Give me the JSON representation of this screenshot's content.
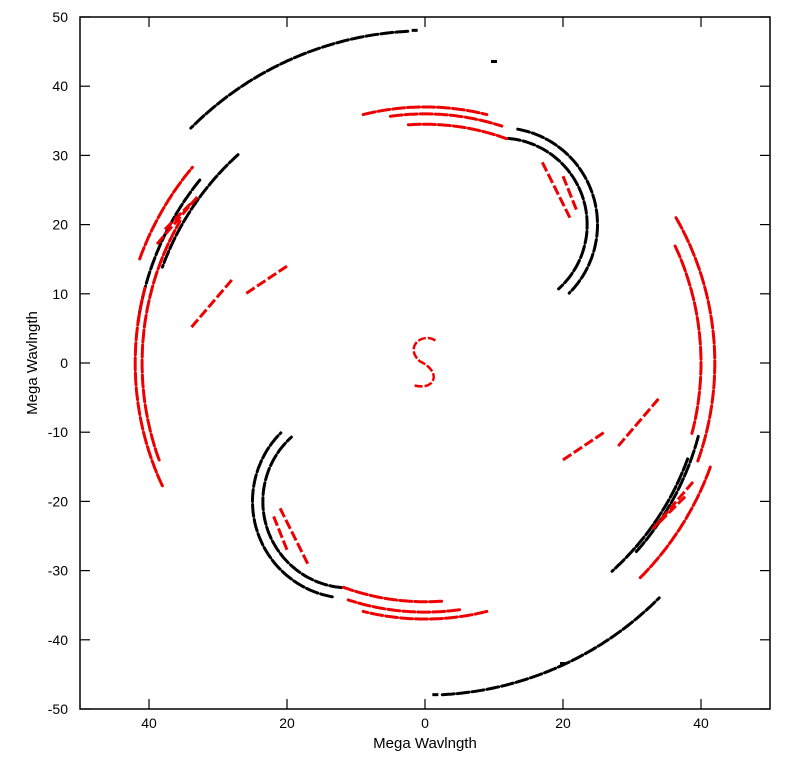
{
  "chart_data": {
    "type": "scatter",
    "title": "",
    "xlabel": "Mega Wavlngth",
    "ylabel": "Mega Wavlngth",
    "xlim": [
      50,
      -50
    ],
    "ylim": [
      -50,
      50
    ],
    "x_ticks": [
      40,
      20,
      0,
      -20,
      -40
    ],
    "x_tick_labels": [
      "40",
      "20",
      "0",
      "20",
      "40"
    ],
    "y_ticks": [
      50,
      40,
      30,
      20,
      10,
      0,
      -10,
      -20,
      -30,
      -40,
      -50
    ],
    "y_tick_labels": [
      "50",
      "40",
      "30",
      "20",
      "10",
      "0",
      "-10",
      "-20",
      "-30",
      "-40",
      "-50"
    ],
    "grid": false,
    "legend": "none",
    "colors": {
      "black_series": "#000000",
      "red_series": "#ee0000",
      "frame": "#000000"
    },
    "series": [
      {
        "color": "#000000",
        "arcs": [
          {
            "center": [
              0,
              0
            ],
            "r": 48,
            "theta_deg": [
              87,
              45
            ],
            "rx_offset": 0
          },
          {
            "center": [
              0,
              0
            ],
            "r": 48,
            "theta_deg": [
              267,
              225
            ]
          },
          {
            "center": [
              0,
              0
            ],
            "r": 42,
            "theta_deg": [
              39,
              8
            ]
          },
          {
            "center": [
              0,
              0
            ],
            "r": 41,
            "theta_deg": [
              195,
              222
            ]
          },
          {
            "center": [
              0,
              0
            ],
            "r": 40.5,
            "theta_deg": [
              48,
              20
            ]
          },
          {
            "center": [
              0,
              0
            ],
            "r": 40.5,
            "theta_deg": [
              200,
              228
            ]
          },
          {
            "center": [
              -11,
              20
            ],
            "r": 14,
            "theta_deg": [
              100,
              225
            ]
          },
          {
            "center": [
              -11,
              20
            ],
            "r": 12.5,
            "theta_deg": [
              95,
              228
            ]
          },
          {
            "center": [
              11,
              -20
            ],
            "r": 14,
            "theta_deg": [
              280,
              405
            ]
          },
          {
            "center": [
              11,
              -20
            ],
            "r": 12.5,
            "theta_deg": [
              275,
              408
            ]
          }
        ],
        "points": [
          [
            -10,
            43.5
          ],
          [
            -20,
            -43.5
          ],
          [
            1.5,
            48
          ],
          [
            -1.5,
            -48
          ]
        ]
      },
      {
        "color": "#ee0000",
        "arcs": [
          {
            "center": [
              0,
              0
            ],
            "r": 42,
            "theta_deg": [
              150,
              200
            ]
          },
          {
            "center": [
              0,
              0
            ],
            "r": 41,
            "theta_deg": [
              -20,
              30
            ]
          },
          {
            "center": [
              0,
              0
            ],
            "r": 40,
            "theta_deg": [
              155,
              195
            ]
          },
          {
            "center": [
              0,
              0
            ],
            "r": 42,
            "theta_deg": [
              -25,
              15
            ]
          },
          {
            "center": [
              0,
              0
            ],
            "r": 44,
            "theta_deg": [
              20,
              40
            ]
          },
          {
            "center": [
              0,
              0
            ],
            "r": 44,
            "theta_deg": [
              200,
              225
            ]
          },
          {
            "center": [
              0,
              0
            ],
            "r": 37,
            "theta_deg": [
              76,
              104
            ]
          },
          {
            "center": [
              0,
              0
            ],
            "r": 36,
            "theta_deg": [
              82,
              108
            ]
          },
          {
            "center": [
              0,
              0
            ],
            "r": 34.5,
            "theta_deg": [
              86,
              110
            ]
          },
          {
            "center": [
              0,
              0
            ],
            "r": 37,
            "theta_deg": [
              256,
              284
            ]
          },
          {
            "center": [
              0,
              0
            ],
            "r": 36,
            "theta_deg": [
              262,
              288
            ]
          },
          {
            "center": [
              0,
              0
            ],
            "r": 34.5,
            "theta_deg": [
              266,
              290
            ]
          }
        ],
        "segments": [
          [
            [
              28,
              12
            ],
            [
              34,
              5
            ]
          ],
          [
            [
              33,
              24
            ],
            [
              39,
              17
            ]
          ],
          [
            [
              34,
              23
            ],
            [
              38,
              19
            ]
          ],
          [
            [
              -28,
              -12
            ],
            [
              -34,
              -5
            ]
          ],
          [
            [
              -33,
              -24
            ],
            [
              -39,
              -17
            ]
          ],
          [
            [
              -34,
              -23
            ],
            [
              -38,
              -19
            ]
          ],
          [
            [
              20,
              14
            ],
            [
              26,
              10
            ]
          ],
          [
            [
              -20,
              -14
            ],
            [
              -26,
              -10
            ]
          ],
          [
            [
              -17,
              29
            ],
            [
              -21,
              21
            ]
          ],
          [
            [
              -20,
              27
            ],
            [
              -22,
              22
            ]
          ],
          [
            [
              17,
              -29
            ],
            [
              21,
              -21
            ]
          ],
          [
            [
              20,
              -27
            ],
            [
              22,
              -22
            ]
          ]
        ],
        "s_mark": {
          "center": [
            0,
            0
          ],
          "size": 2.5
        }
      }
    ]
  }
}
